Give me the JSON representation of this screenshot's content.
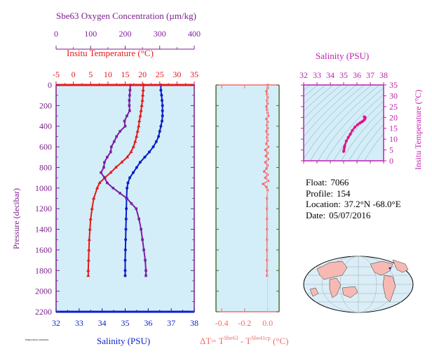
{
  "colors": {
    "panel_bg": "#d3eef8",
    "oxygen": "#7b1fa2",
    "temperature": "#e31a1c",
    "salinity": "#0a1ecc",
    "delta_t": "#f36b6b",
    "ts_pink": "#e0128a",
    "purple_axis": "#7b1f8c",
    "olive_axis": "#556b2f",
    "magenta_axis": "#c01fb0"
  },
  "labels": {
    "oxygen_title": "Sbe63 Oxygen Concentration (µm/kg)",
    "temp_title": "Insitu Temperature (°C)",
    "pressure_title": "Pressure (decibar)",
    "salinity_title": "Salinity (PSU)",
    "ts_salinity_title": "Salinity (PSU)",
    "ts_temp_title": "Insitu Temperature (°C)",
    "delta_prefix": "ΔT= T",
    "delta_sup1": "Sbe63",
    "delta_mid": " - T",
    "delta_sup2": "Sbe41cp",
    "delta_suffix": " (°C)",
    "tiny_text": "PMEL/NOAA 20160516"
  },
  "float_info": {
    "float_label": "Float:",
    "float_value": "7066",
    "profile_label": "Profile:",
    "profile_value": "154",
    "location_label": "Location:",
    "location_value": "37.2°N  -68.0°E",
    "date_label": "Date:",
    "date_value": "05/07/2016"
  },
  "chart_data": [
    {
      "type": "line",
      "title": "",
      "ylabel": "Pressure (decibar)",
      "ylim": [
        0,
        2200
      ],
      "y_inverted": true,
      "y_ticks": [
        "0",
        "200",
        "400",
        "600",
        "800",
        "1000",
        "1200",
        "1400",
        "1600",
        "1800",
        "2000",
        "2200"
      ],
      "axes": {
        "oxygen": {
          "label": "Sbe63 Oxygen Concentration (µm/kg)",
          "lim": [
            0,
            400
          ],
          "ticks": [
            "0",
            "100",
            "200",
            "300",
            "400"
          ]
        },
        "temperature": {
          "label": "Insitu Temperature (°C)",
          "lim": [
            -5,
            35
          ],
          "ticks": [
            "-5",
            "0",
            "5",
            "10",
            "15",
            "20",
            "25",
            "30",
            "35"
          ]
        },
        "salinity": {
          "label": "Salinity (PSU)",
          "lim": [
            32,
            38
          ],
          "ticks": [
            "32",
            "33",
            "34",
            "35",
            "36",
            "37",
            "38"
          ]
        }
      },
      "series": [
        {
          "key": "temperature",
          "pressure": [
            0,
            50,
            100,
            150,
            200,
            250,
            300,
            350,
            400,
            450,
            500,
            550,
            600,
            650,
            700,
            750,
            800,
            850,
            900,
            950,
            1000,
            1100,
            1200,
            1300,
            1400,
            1500,
            1600,
            1700,
            1800,
            1850
          ],
          "values": [
            20.3,
            20.2,
            20.1,
            20.0,
            19.8,
            19.6,
            19.4,
            19.1,
            18.9,
            18.6,
            18.3,
            17.9,
            17.4,
            16.7,
            15.6,
            14.0,
            12.3,
            10.8,
            9.1,
            7.6,
            6.9,
            5.9,
            5.4,
            5.0,
            4.8,
            4.6,
            4.5,
            4.4,
            4.3,
            4.3
          ]
        },
        {
          "key": "salinity",
          "pressure": [
            0,
            50,
            100,
            150,
            200,
            250,
            300,
            350,
            400,
            450,
            500,
            550,
            600,
            650,
            700,
            750,
            800,
            850,
            900,
            950,
            1000,
            1100,
            1200,
            1300,
            1400,
            1500,
            1600,
            1700,
            1800,
            1850
          ],
          "values": [
            36.55,
            36.55,
            36.58,
            36.6,
            36.62,
            36.62,
            36.62,
            36.6,
            36.55,
            36.5,
            36.45,
            36.35,
            36.22,
            36.05,
            35.85,
            35.65,
            35.5,
            35.35,
            35.2,
            35.12,
            35.08,
            35.06,
            35.05,
            35.04,
            35.03,
            35.02,
            35.01,
            35.0,
            35.0,
            35.0
          ]
        },
        {
          "key": "oxygen",
          "pressure": [
            0,
            50,
            100,
            150,
            200,
            250,
            300,
            350,
            400,
            450,
            500,
            550,
            600,
            650,
            700,
            750,
            800,
            850,
            900,
            950,
            1000,
            1050,
            1100,
            1150,
            1200,
            1300,
            1400,
            1500,
            1600,
            1700,
            1800,
            1850
          ],
          "values": [
            215,
            214,
            213,
            212,
            212,
            213,
            205,
            198,
            200,
            185,
            175,
            168,
            160,
            158,
            148,
            140,
            138,
            130,
            140,
            148,
            165,
            185,
            205,
            218,
            232,
            240,
            246,
            250,
            254,
            258,
            260,
            260
          ]
        }
      ]
    },
    {
      "type": "line",
      "title": "",
      "xlabel": "ΔT= T Sbe63 - T Sbe41cp (°C)",
      "xlim": [
        -0.45,
        0.1
      ],
      "x_ticks": [
        "-0.4",
        "-0.2",
        "0.0"
      ],
      "ylim": [
        0,
        2200
      ],
      "series": [
        {
          "name": "ΔT",
          "pressure": [
            0,
            30,
            60,
            90,
            120,
            150,
            180,
            210,
            240,
            270,
            300,
            330,
            360,
            390,
            420,
            450,
            480,
            510,
            540,
            570,
            600,
            630,
            660,
            690,
            720,
            750,
            780,
            810,
            840,
            870,
            900,
            930,
            960,
            990,
            1020,
            1100,
            1200,
            1300,
            1400,
            1500,
            1600,
            1700,
            1800,
            1850
          ],
          "values": [
            0.0,
            0.0,
            -0.01,
            -0.005,
            0.0,
            -0.005,
            0.0,
            -0.01,
            -0.005,
            0.0,
            0.005,
            -0.01,
            0.0,
            -0.005,
            0.0,
            -0.01,
            0.0,
            -0.005,
            0.0,
            -0.01,
            0.005,
            -0.02,
            0.0,
            -0.015,
            0.005,
            -0.02,
            0.0,
            -0.01,
            -0.03,
            0.0,
            -0.02,
            0.005,
            -0.04,
            -0.01,
            0.0,
            -0.005,
            -0.005,
            -0.005,
            -0.005,
            -0.005,
            -0.005,
            -0.005,
            -0.005,
            -0.005
          ]
        }
      ]
    },
    {
      "type": "line",
      "title": "",
      "xlabel": "Salinity (PSU)",
      "ylabel": "Insitu Temperature (°C)",
      "xlim": [
        32,
        38
      ],
      "ylim": [
        0,
        35
      ],
      "x_ticks": [
        "32",
        "33",
        "34",
        "35",
        "36",
        "37",
        "38"
      ],
      "y_ticks": [
        "0",
        "5",
        "10",
        "15",
        "20",
        "25",
        "30",
        "35"
      ],
      "series": [
        {
          "name": "T-S",
          "x": [
            35.0,
            35.02,
            35.05,
            35.08,
            35.2,
            35.35,
            35.5,
            35.65,
            35.85,
            36.05,
            36.22,
            36.35,
            36.45,
            36.55,
            36.62,
            36.6,
            36.55
          ],
          "y": [
            4.3,
            4.8,
            5.9,
            6.9,
            9.1,
            10.8,
            12.3,
            14.0,
            15.6,
            16.7,
            17.4,
            17.9,
            18.3,
            18.9,
            19.6,
            20.1,
            20.3
          ]
        }
      ]
    }
  ]
}
